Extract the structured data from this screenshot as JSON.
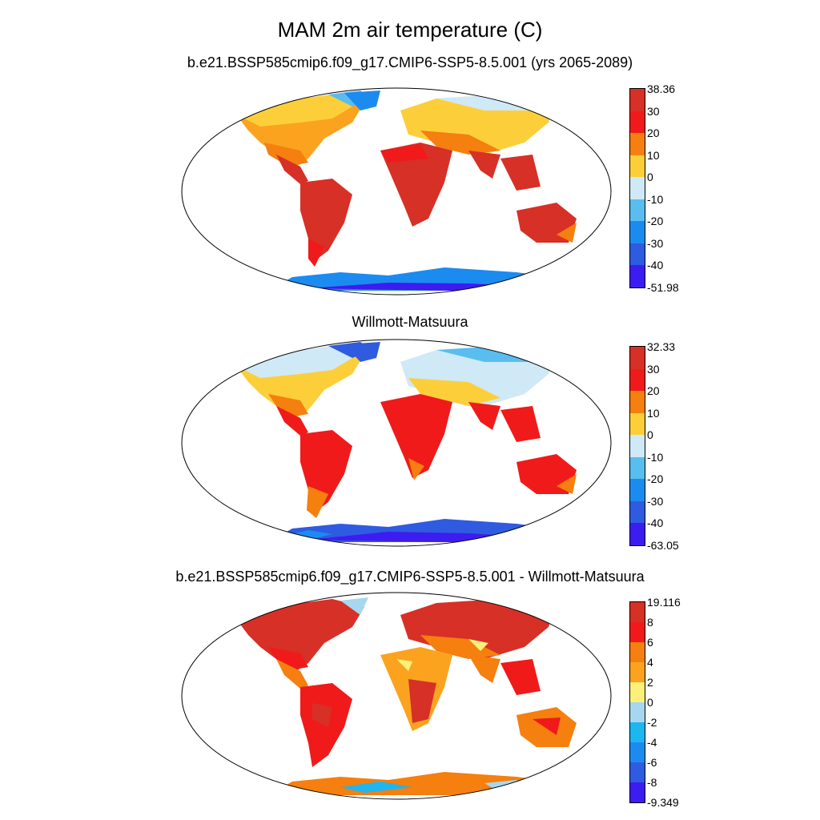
{
  "title": "MAM 2m air temperature (C)",
  "panels": [
    {
      "id": "model",
      "title": "b.e21.BSSP585cmip6.f09_g17.CMIP6-SSP5-8.5.001 (yrs 2065-2089)",
      "colorbar": {
        "labels": [
          "38.36",
          "30",
          "20",
          "10",
          "0",
          "-10",
          "-20",
          "-30",
          "-40",
          "-51.98"
        ],
        "colors": [
          "#d73027",
          "#f01a1a",
          "#f57f0f",
          "#fccf3a",
          "#cfe9f6",
          "#59bdef",
          "#1c8bf0",
          "#2f5be0",
          "#3c1cf0"
        ]
      }
    },
    {
      "id": "obs",
      "title": "Willmott-Matsuura",
      "colorbar": {
        "labels": [
          "32.33",
          "30",
          "20",
          "10",
          "0",
          "-10",
          "-20",
          "-30",
          "-40",
          "-63.05"
        ],
        "colors": [
          "#d73027",
          "#f01a1a",
          "#f57f0f",
          "#fccf3a",
          "#cfe9f6",
          "#59bdef",
          "#1c8bf0",
          "#2f5be0",
          "#3c1cf0"
        ]
      }
    },
    {
      "id": "diff",
      "title": "b.e21.BSSP585cmip6.f09_g17.CMIP6-SSP5-8.5.001 - Willmott-Matsuura",
      "colorbar": {
        "labels": [
          "19.116",
          "8",
          "6",
          "4",
          "2",
          "0",
          "-2",
          "-4",
          "-6",
          "-8",
          "-9.349"
        ],
        "colors": [
          "#d73027",
          "#f01a1a",
          "#f57f0f",
          "#fba31f",
          "#fcf07a",
          "#a7d7f0",
          "#1cb6f0",
          "#1c8bf0",
          "#2f5be0",
          "#3c1cf0"
        ]
      }
    }
  ]
}
